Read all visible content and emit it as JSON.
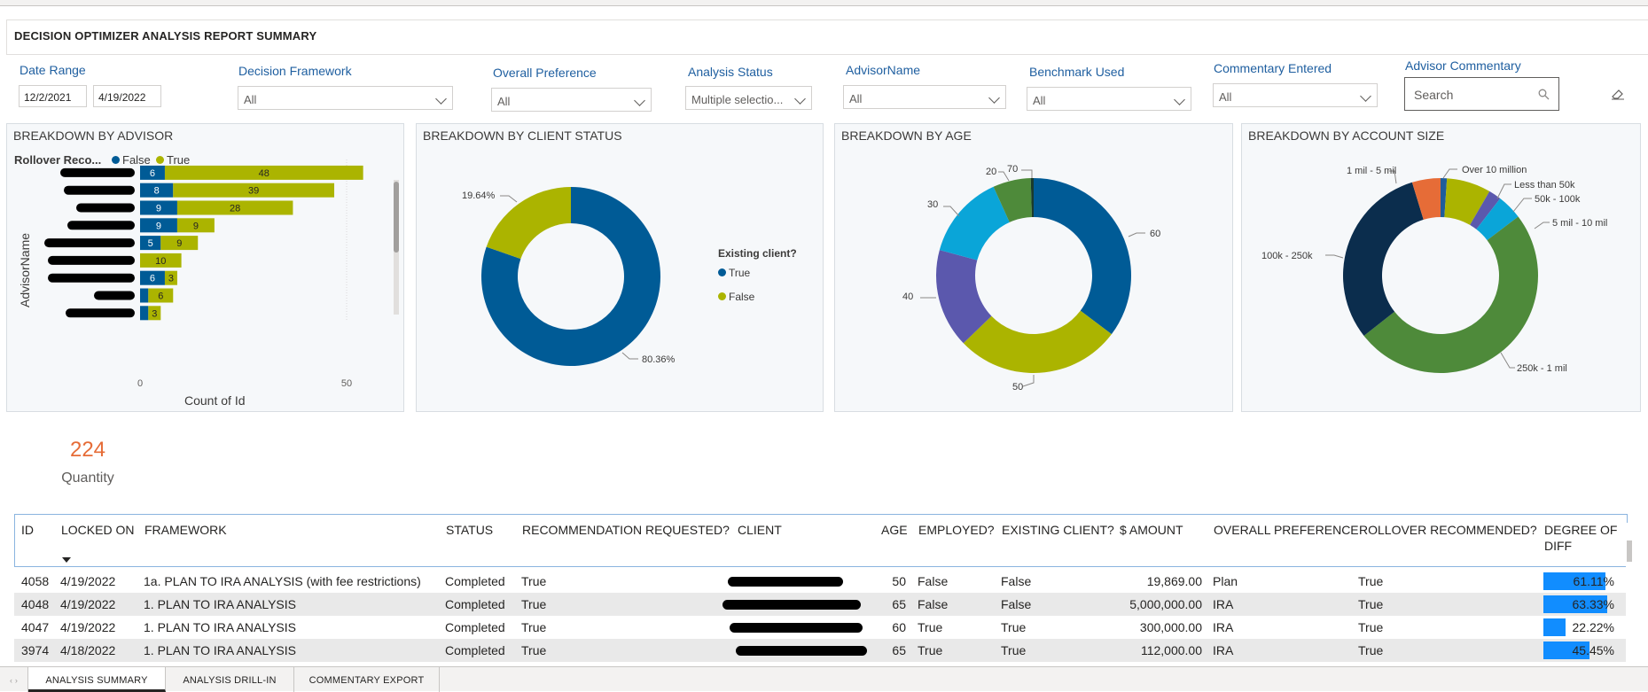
{
  "report_title": "DECISION OPTIMIZER ANALYSIS REPORT SUMMARY",
  "slicers": {
    "date_range": {
      "label": "Date Range",
      "start": "12/2/2021",
      "end": "4/19/2022"
    },
    "decision_framework": {
      "label": "Decision Framework",
      "value": "All"
    },
    "overall_preference": {
      "label": "Overall Preference",
      "value": "All"
    },
    "analysis_status": {
      "label": "Analysis Status",
      "value": "Multiple selectio..."
    },
    "advisor_name": {
      "label": "AdvisorName",
      "value": "All"
    },
    "benchmark_used": {
      "label": "Benchmark Used",
      "value": "All"
    },
    "commentary_entered": {
      "label": "Commentary Entered",
      "value": "All"
    },
    "advisor_commentary": {
      "label": "Advisor Commentary",
      "placeholder": "Search"
    }
  },
  "icons": {
    "search": "search-icon",
    "eraser": "eraser-icon",
    "dropdown": "chevron-down-icon",
    "sort": "sort-desc-icon"
  },
  "colors": {
    "true": "#abb400",
    "false": "#005b96",
    "accent_orange": "#e66c37",
    "bar_blue": "#118dff"
  },
  "panels": {
    "advisor": "BREAKDOWN BY ADVISOR",
    "client_status": "BREAKDOWN BY CLIENT STATUS",
    "age": "BREAKDOWN BY AGE",
    "account_size": "BREAKDOWN BY ACCOUNT SIZE"
  },
  "chart_data": [
    {
      "type": "bar",
      "orientation": "horizontal-stacked",
      "title": "BREAKDOWN BY ADVISOR",
      "legend_title": "Rollover Reco...",
      "legend_position": "top-left",
      "xlabel": "Count of Id",
      "ylabel": "AdvisorName",
      "xticks": [
        "0",
        "50"
      ],
      "xlim": [
        0,
        65
      ],
      "series": [
        {
          "name": "False",
          "color": "#005b96",
          "values": [
            6,
            8,
            9,
            9,
            5,
            0,
            6,
            2,
            2
          ],
          "labels": [
            "6",
            "8",
            "9",
            "9",
            "5",
            "",
            "6",
            "",
            ""
          ]
        },
        {
          "name": "True",
          "color": "#abb400",
          "values": [
            48,
            39,
            28,
            9,
            9,
            10,
            3,
            6,
            3
          ],
          "labels": [
            "48",
            "39",
            "28",
            "9",
            "9",
            "10",
            "3",
            "6",
            "3"
          ]
        }
      ]
    },
    {
      "type": "pie",
      "style": "donut",
      "title": "BREAKDOWN BY CLIENT STATUS",
      "legend_title": "Existing client?",
      "legend_position": "right",
      "slices": [
        {
          "name": "True",
          "value": 80.36,
          "label": "80.36%",
          "color": "#005b96"
        },
        {
          "name": "False",
          "value": 19.64,
          "label": "19.64%",
          "color": "#abb400"
        }
      ]
    },
    {
      "type": "pie",
      "style": "donut",
      "title": "BREAKDOWN BY AGE",
      "slices": [
        {
          "name": "60",
          "value": 73,
          "label": "60",
          "color": "#005b96"
        },
        {
          "name": "50",
          "value": 57,
          "label": "50",
          "color": "#abb400"
        },
        {
          "name": "40",
          "value": 34,
          "label": "40",
          "color": "#5b58ad"
        },
        {
          "name": "30",
          "value": 29,
          "label": "30",
          "color": "#0aa5d8"
        },
        {
          "name": "20",
          "value": 13,
          "label": "20",
          "color": "#4e8a3a"
        },
        {
          "name": "70",
          "value": 1,
          "label": "70",
          "color": "#1a3b2c"
        }
      ]
    },
    {
      "type": "pie",
      "style": "donut",
      "title": "BREAKDOWN BY ACCOUNT SIZE",
      "slices": [
        {
          "name": "Over 10 million",
          "value": 2,
          "label": "Over 10 million",
          "color": "#1f5d9b"
        },
        {
          "name": "Less than 50k",
          "value": 14,
          "label": "Less than 50k",
          "color": "#abb400"
        },
        {
          "name": "50k - 100k",
          "value": 4,
          "label": "50k - 100k",
          "color": "#5b58ad"
        },
        {
          "name": "5 mil - 10 mil",
          "value": 8,
          "label": "5 mil - 10 mil",
          "color": "#0aa5d8"
        },
        {
          "name": "250k - 1 mil",
          "value": 95,
          "label": "250k - 1 mil",
          "color": "#4e8a3a"
        },
        {
          "name": "100k - 250k",
          "value": 59,
          "label": "100k - 250k",
          "color": "#0b2d4d"
        },
        {
          "name": "1 mil - 5 mil",
          "value": 9,
          "label": "1 mil - 5 mil",
          "color": "#e66c37"
        }
      ]
    }
  ],
  "card": {
    "value": "224",
    "label": "Quantity"
  },
  "table": {
    "headers": [
      "ID",
      "LOCKED ON",
      "FRAMEWORK",
      "STATUS",
      "RECOMMENDATION REQUESTED?",
      "CLIENT",
      "AGE",
      "EMPLOYED?",
      "EXISTING CLIENT?",
      "$ AMOUNT",
      "OVERALL PREFERENCE",
      "ROLLOVER RECOMMENDED?",
      "DEGREE OF DIFF"
    ],
    "rows": [
      {
        "id": "4058",
        "locked_on": "4/19/2022",
        "framework": "1a. PLAN TO IRA ANALYSIS (with fee restrictions)",
        "status": "Completed",
        "recommendation": "True",
        "age": "50",
        "employed": "False",
        "existing": "False",
        "amount": "19,869.00",
        "preference": "Plan",
        "rollover": "True",
        "diff": "61.11%",
        "diff_value": 0.6111
      },
      {
        "id": "4048",
        "locked_on": "4/19/2022",
        "framework": "1. PLAN TO IRA ANALYSIS",
        "status": "Completed",
        "recommendation": "True",
        "age": "65",
        "employed": "False",
        "existing": "False",
        "amount": "5,000,000.00",
        "preference": "IRA",
        "rollover": "True",
        "diff": "63.33%",
        "diff_value": 0.6333
      },
      {
        "id": "4047",
        "locked_on": "4/19/2022",
        "framework": "1. PLAN TO IRA ANALYSIS",
        "status": "Completed",
        "recommendation": "True",
        "age": "60",
        "employed": "True",
        "existing": "True",
        "amount": "300,000.00",
        "preference": "IRA",
        "rollover": "True",
        "diff": "22.22%",
        "diff_value": 0.2222
      },
      {
        "id": "3974",
        "locked_on": "4/18/2022",
        "framework": "1. PLAN TO IRA ANALYSIS",
        "status": "Completed",
        "recommendation": "True",
        "age": "65",
        "employed": "True",
        "existing": "True",
        "amount": "112,000.00",
        "preference": "IRA",
        "rollover": "True",
        "diff": "45.45%",
        "diff_value": 0.4545
      }
    ]
  },
  "tabs": [
    "ANALYSIS SUMMARY",
    "ANALYSIS DRILL-IN",
    "COMMENTARY EXPORT"
  ]
}
